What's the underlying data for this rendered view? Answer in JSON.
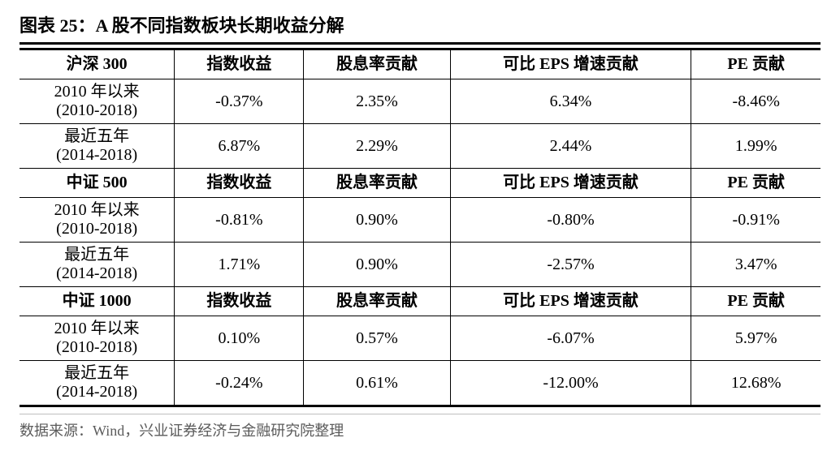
{
  "title": "图表 25：A 股不同指数板块长期收益分解",
  "footnote": "数据来源：Wind，兴业证券经济与金融研究院整理",
  "colors": {
    "text": "#000000",
    "background": "#ffffff",
    "note_text": "#5b5b5b",
    "rule": "#bfbfbf"
  },
  "font": {
    "title_size_pt": 16,
    "cell_size_pt": 15,
    "note_size_pt": 14
  },
  "column_widths_pct": [
    18,
    15,
    17,
    28,
    15
  ],
  "sections": [
    {
      "header": {
        "label": "沪深 300",
        "cols": [
          "指数收益",
          "股息率贡献",
          "可比 EPS 增速贡献",
          "PE 贡献"
        ]
      },
      "rows": [
        {
          "period_main": "2010 年以来",
          "period_sub": "(2010-2018)",
          "values": [
            "-0.37%",
            "2.35%",
            "6.34%",
            "-8.46%"
          ]
        },
        {
          "period_main": "最近五年",
          "period_sub": "(2014-2018)",
          "values": [
            "6.87%",
            "2.29%",
            "2.44%",
            "1.99%"
          ]
        }
      ]
    },
    {
      "header": {
        "label": "中证 500",
        "cols": [
          "指数收益",
          "股息率贡献",
          "可比 EPS 增速贡献",
          "PE 贡献"
        ]
      },
      "rows": [
        {
          "period_main": "2010 年以来",
          "period_sub": "(2010-2018)",
          "values": [
            "-0.81%",
            "0.90%",
            "-0.80%",
            "-0.91%"
          ]
        },
        {
          "period_main": "最近五年",
          "period_sub": "(2014-2018)",
          "values": [
            "1.71%",
            "0.90%",
            "-2.57%",
            "3.47%"
          ]
        }
      ]
    },
    {
      "header": {
        "label": "中证 1000",
        "cols": [
          "指数收益",
          "股息率贡献",
          "可比 EPS 增速贡献",
          "PE 贡献"
        ]
      },
      "rows": [
        {
          "period_main": "2010 年以来",
          "period_sub": "(2010-2018)",
          "values": [
            "0.10%",
            "0.57%",
            "-6.07%",
            "5.97%"
          ]
        },
        {
          "period_main": "最近五年",
          "period_sub": "(2014-2018)",
          "values": [
            "-0.24%",
            "0.61%",
            "-12.00%",
            "12.68%"
          ]
        }
      ]
    }
  ]
}
